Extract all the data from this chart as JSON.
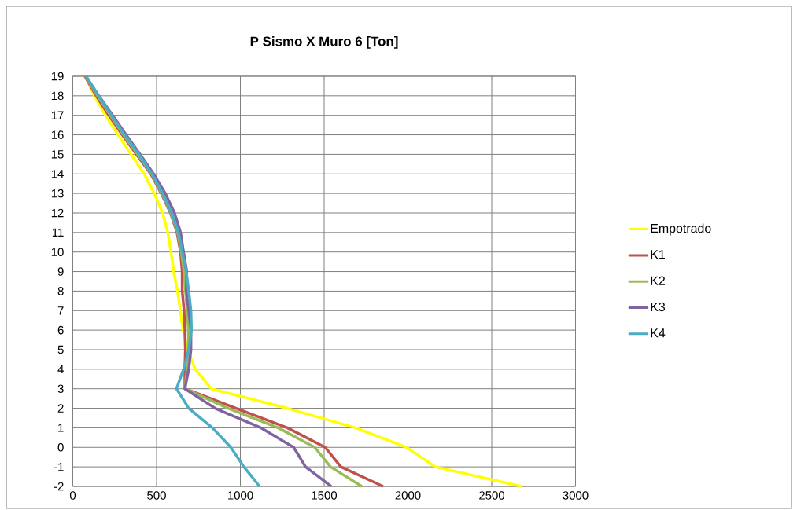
{
  "chart_data": {
    "type": "line",
    "title": "P Sismo X Muro 6 [Ton]",
    "series": [
      {
        "name": "Empotrado",
        "color": "#ffff00",
        "x": [
          74,
          129,
          195,
          270,
          348,
          426,
          486,
          536,
          567,
          586,
          602,
          625,
          642,
          658,
          685,
          731,
          826,
          1280,
          1686,
          1991,
          2164,
          2678
        ],
        "values": [
          19,
          18,
          17,
          16,
          15,
          14,
          13,
          12,
          11,
          10,
          9,
          8,
          7,
          6,
          5,
          4,
          3,
          2,
          1,
          0,
          -1,
          -2
        ]
      },
      {
        "name": "K1",
        "color": "#c0504d",
        "x": [
          72,
          140,
          215,
          295,
          380,
          465,
          528,
          583,
          622,
          643,
          653,
          653,
          664,
          669,
          672,
          669,
          669,
          975,
          1280,
          1506,
          1600,
          1852
        ],
        "values": [
          19,
          18,
          17,
          16,
          15,
          14,
          13,
          12,
          11,
          10,
          9,
          8,
          7,
          6,
          5,
          4,
          3,
          2,
          1,
          0,
          -1,
          -2
        ]
      },
      {
        "name": "K2",
        "color": "#9bbb59",
        "x": [
          75,
          148,
          225,
          303,
          388,
          470,
          532,
          587,
          626,
          648,
          663,
          673,
          682,
          690,
          690,
          682,
          669,
          927,
          1225,
          1444,
          1538,
          1725
        ],
        "values": [
          19,
          18,
          17,
          16,
          15,
          14,
          13,
          12,
          11,
          10,
          9,
          8,
          7,
          6,
          5,
          4,
          3,
          2,
          1,
          0,
          -1,
          -2
        ]
      },
      {
        "name": "K3",
        "color": "#8064a2",
        "x": [
          78,
          155,
          238,
          318,
          402,
          482,
          552,
          607,
          643,
          661,
          680,
          677,
          692,
          705,
          705,
          692,
          669,
          849,
          1123,
          1318,
          1389,
          1542
        ],
        "values": [
          19,
          18,
          17,
          16,
          15,
          14,
          13,
          12,
          11,
          10,
          9,
          8,
          7,
          6,
          5,
          4,
          3,
          2,
          1,
          0,
          -1,
          -2
        ]
      },
      {
        "name": "K4",
        "color": "#4bacc6",
        "x": [
          80,
          153,
          231,
          309,
          395,
          473,
          536,
          590,
          630,
          653,
          677,
          692,
          705,
          708,
          692,
          661,
          619,
          692,
          833,
          943,
          1021,
          1115
        ],
        "values": [
          19,
          18,
          17,
          16,
          15,
          14,
          13,
          12,
          11,
          10,
          9,
          8,
          7,
          6,
          5,
          4,
          3,
          2,
          1,
          0,
          -1,
          -2
        ]
      }
    ],
    "xlim": [
      0,
      3000
    ],
    "ylim": [
      -2,
      19
    ],
    "xticks": [
      0,
      500,
      1000,
      1500,
      2000,
      2500,
      3000
    ],
    "yticks": [
      -2,
      -1,
      0,
      1,
      2,
      3,
      4,
      5,
      6,
      7,
      8,
      9,
      10,
      11,
      12,
      13,
      14,
      15,
      16,
      17,
      18,
      19
    ],
    "grid": true,
    "legend": "right"
  }
}
